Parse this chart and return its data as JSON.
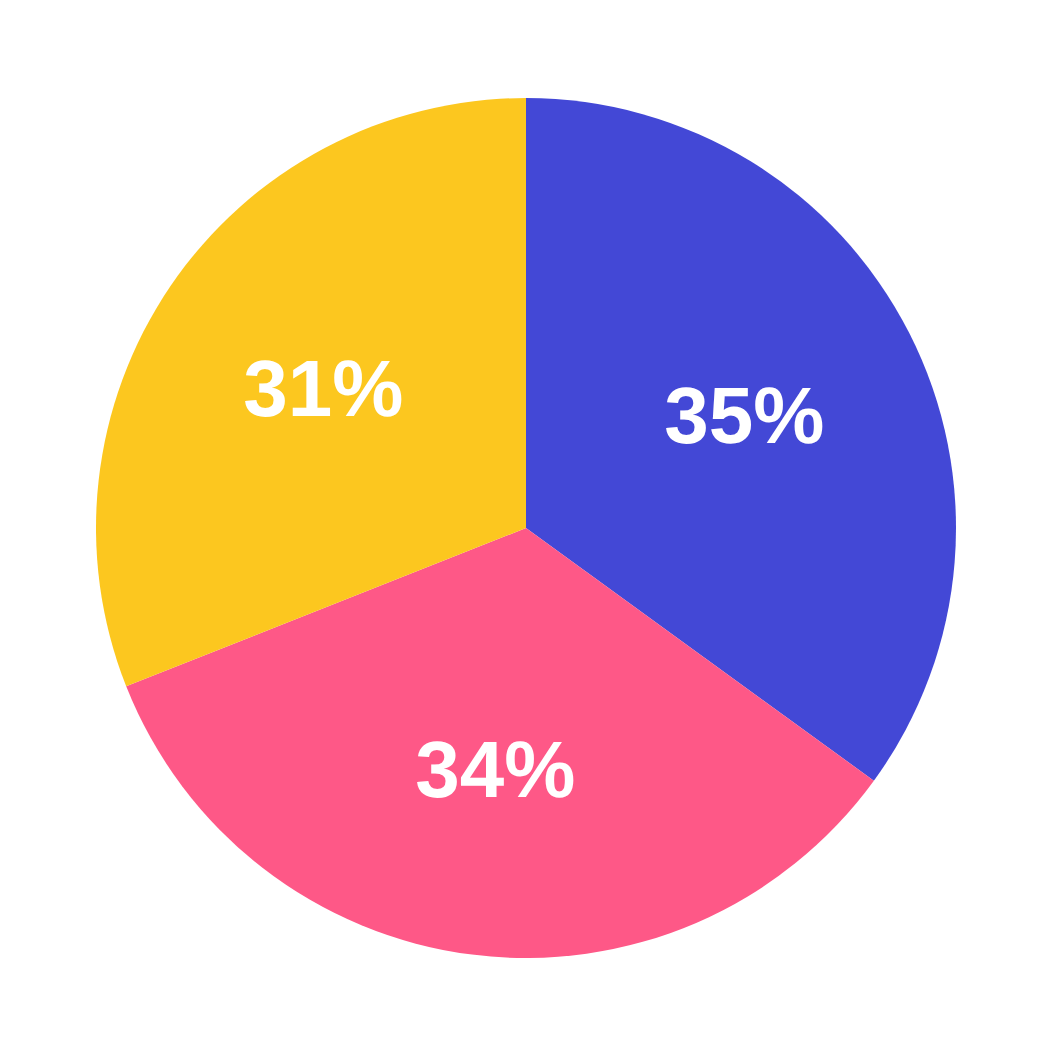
{
  "chart_data": {
    "type": "pie",
    "categories": [
      null,
      null,
      null
    ],
    "values": [
      35,
      34,
      31
    ],
    "value_labels": [
      "35%",
      "34%",
      "31%"
    ],
    "colors": [
      "#4348d6",
      "#fe5887",
      "#fcc71f"
    ]
  }
}
